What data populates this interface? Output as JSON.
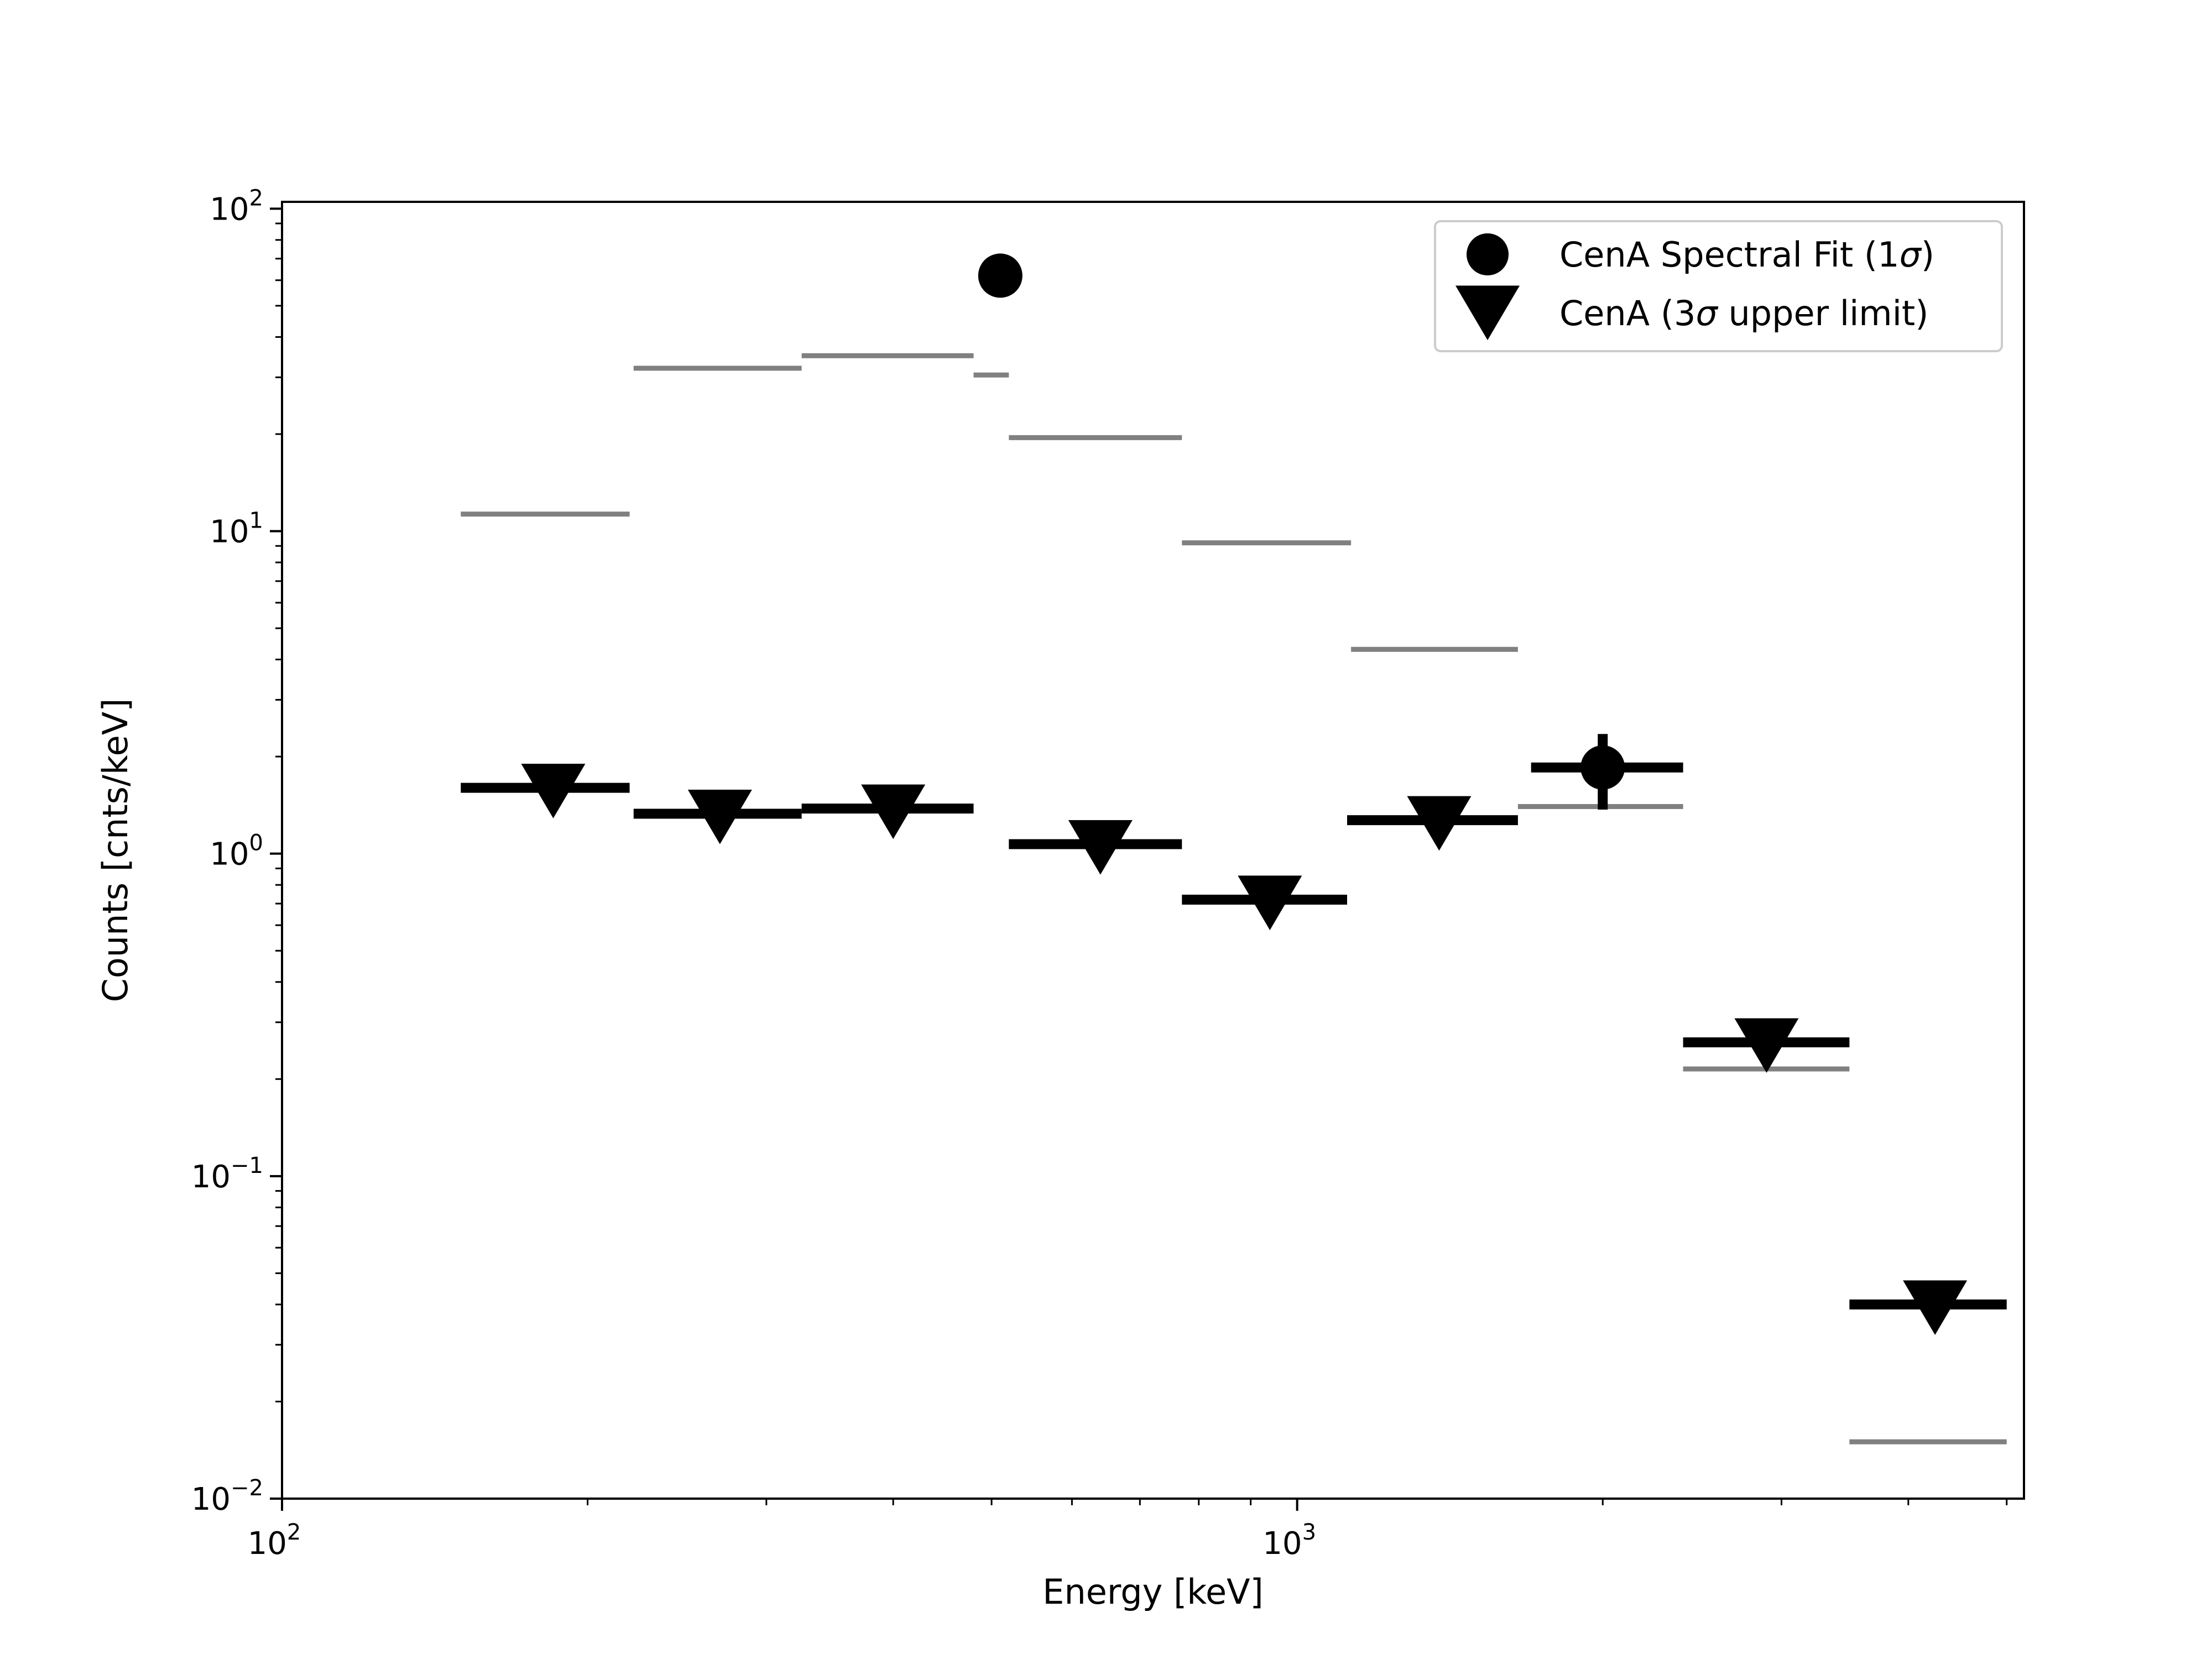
{
  "chart_data": {
    "type": "scatter",
    "xlabel": "Energy [keV]",
    "ylabel": "Counts [cnts/keV]",
    "xscale": "log",
    "yscale": "log",
    "xlim": [
      100,
      5200
    ],
    "ylim": [
      0.01,
      105
    ],
    "x_ticks": [
      {
        "base": "10",
        "exp": "2",
        "value": 100
      },
      {
        "base": "10",
        "exp": "3",
        "value": 1000
      }
    ],
    "y_ticks": [
      {
        "base": "10",
        "exp": "2",
        "value": 100
      },
      {
        "base": "10",
        "exp": "1",
        "value": 10
      },
      {
        "base": "10",
        "exp": "0",
        "value": 1
      },
      {
        "base": "10",
        "exp": "−1",
        "value": 0.1
      },
      {
        "base": "10",
        "exp": "−2",
        "value": 0.01
      }
    ],
    "grid": false,
    "legend_position": "top-right",
    "series": [
      {
        "name": "CenA Spectral Fit (1σ)",
        "legend_label": "CenA Spectral Fit (1",
        "legend_suffix": ")",
        "marker": "circle",
        "color": "#000000",
        "points": [
          {
            "x": 510,
            "y": 62
          },
          {
            "x": 2000,
            "y": 1.85,
            "xmin": 1700,
            "xmax": 2400,
            "ymin": 1.37,
            "ymax": 2.35
          }
        ]
      },
      {
        "name": "CenA (3σ upper limit)",
        "legend_label_pre": "CenA (3",
        "legend_label_post": " upper limit)",
        "marker": "triangle-down",
        "color": "#000000",
        "points": [
          {
            "x": 185,
            "y": 1.6,
            "xmin": 150,
            "xmax": 220
          },
          {
            "x": 270,
            "y": 1.33,
            "xmin": 222,
            "xmax": 325
          },
          {
            "x": 400,
            "y": 1.38,
            "xmin": 325,
            "xmax": 480
          },
          {
            "x": 640,
            "y": 1.07,
            "xmin": 520,
            "xmax": 770
          },
          {
            "x": 940,
            "y": 0.72,
            "xmin": 770,
            "xmax": 1120
          },
          {
            "x": 1380,
            "y": 1.27,
            "xmin": 1120,
            "xmax": 1650
          },
          {
            "x": 2900,
            "y": 0.26,
            "xmin": 2400,
            "xmax": 3500
          },
          {
            "x": 4250,
            "y": 0.04,
            "xmin": 3500,
            "xmax": 5000
          }
        ]
      },
      {
        "marker": "hline",
        "color": "#808080",
        "segments": [
          {
            "xmin": 150,
            "xmax": 220,
            "y": 11.3
          },
          {
            "xmin": 222,
            "xmax": 325,
            "y": 32
          },
          {
            "xmin": 325,
            "xmax": 480,
            "y": 35
          },
          {
            "xmin": 480,
            "xmax": 520,
            "y": 30.5
          },
          {
            "xmin": 520,
            "xmax": 770,
            "y": 19.5
          },
          {
            "xmin": 770,
            "xmax": 1130,
            "y": 9.2
          },
          {
            "xmin": 1130,
            "xmax": 1650,
            "y": 4.3
          },
          {
            "xmin": 1650,
            "xmax": 2400,
            "y": 1.4
          },
          {
            "xmin": 2400,
            "xmax": 3500,
            "y": 0.215
          },
          {
            "xmin": 3500,
            "xmax": 5000,
            "y": 0.015
          }
        ]
      }
    ]
  }
}
